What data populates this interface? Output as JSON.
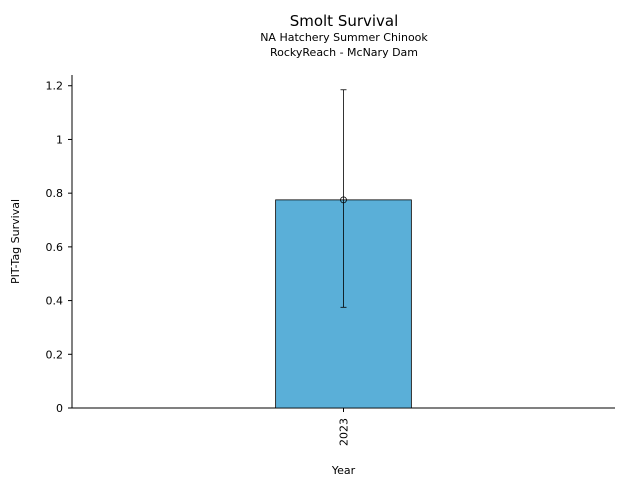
{
  "chart_data": {
    "type": "bar",
    "title": "Smolt Survival",
    "subtitle_lines": [
      "NA Hatchery Summer Chinook",
      "RockyReach - McNary Dam"
    ],
    "xlabel": "Year",
    "ylabel": "PIT-Tag Survival",
    "categories": [
      "2023"
    ],
    "values": [
      0.775
    ],
    "error_bars": [
      {
        "lower": 0.375,
        "upper": 1.185
      }
    ],
    "ylim": [
      0,
      1.24
    ],
    "yticks": [
      0,
      0.2,
      0.4,
      0.6,
      0.8,
      1,
      1.2
    ],
    "ytick_labels": [
      "0",
      "0.2",
      "0.4",
      "0.6",
      "0.8",
      "1",
      "1.2"
    ],
    "grid": false,
    "bar_color": "#5aafd8"
  }
}
